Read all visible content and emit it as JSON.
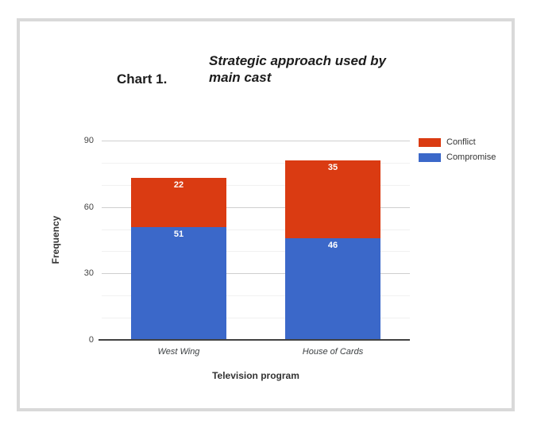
{
  "header": {
    "label": "Chart 1.",
    "title": "Strategic approach used by main cast"
  },
  "chart_data": {
    "type": "bar",
    "subtype": "stacked-vertical",
    "title": "Strategic approach used by main cast",
    "title_prefix": "Chart 1.",
    "categories": [
      "West Wing",
      "House of Cards"
    ],
    "series": [
      {
        "name": "Compromise",
        "color": "#3b68c9",
        "values": [
          51,
          46
        ]
      },
      {
        "name": "Conflict",
        "color": "#da3b12",
        "values": [
          22,
          35
        ]
      }
    ],
    "totals": [
      73,
      81
    ],
    "legend_order": [
      "Conflict",
      "Compromise"
    ],
    "legend_position": "right",
    "xlabel": "Television program",
    "ylabel": "Frequency",
    "ylim": [
      0,
      90
    ],
    "y_major_step": 30,
    "y_minor_step": 10,
    "y_tick_labels": [
      "0",
      "30",
      "60",
      "90"
    ],
    "value_label_color": "#ffffff",
    "gridlines": true
  },
  "frame": {
    "border_color": "#d9d9d9",
    "background": "#ffffff"
  }
}
